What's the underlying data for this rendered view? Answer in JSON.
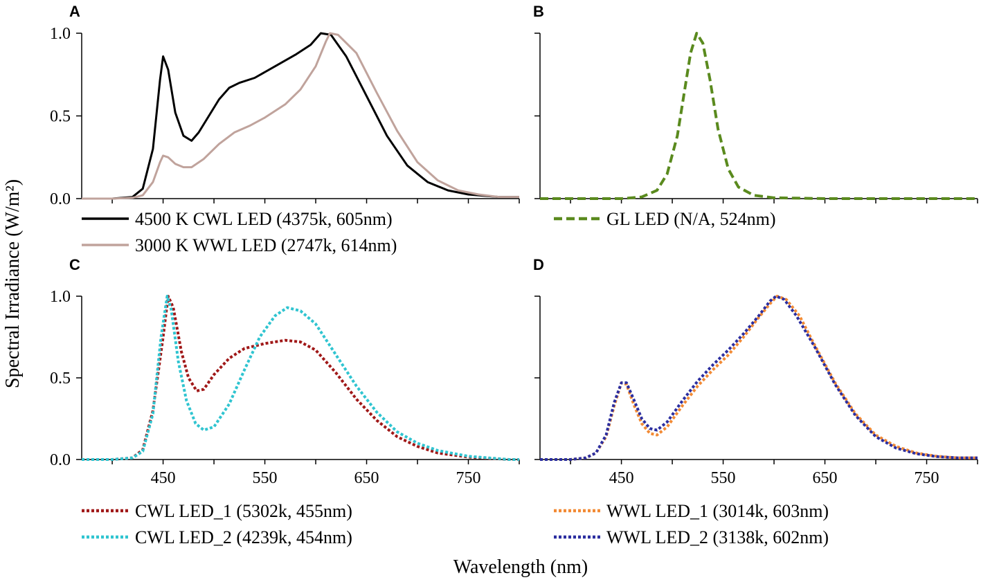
{
  "figure": {
    "ylabel": "Spectral Irradiance (W/m²)",
    "xlabel": "Wavelength (nm)"
  },
  "chart_data": [
    {
      "panel": "A",
      "type": "line",
      "xlim": [
        370,
        800
      ],
      "ylim": [
        0,
        1
      ],
      "yticks": [
        "0.0",
        "0.5",
        "1.0"
      ],
      "xticks": [],
      "series": [
        {
          "name": "4500 K CWL  LED (4375k, 605nm)",
          "color": "#000000",
          "dash": "solid",
          "points": [
            [
              370,
              0
            ],
            [
              400,
              0
            ],
            [
              420,
              0.01
            ],
            [
              430,
              0.06
            ],
            [
              440,
              0.3
            ],
            [
              447,
              0.72
            ],
            [
              450,
              0.86
            ],
            [
              455,
              0.78
            ],
            [
              462,
              0.52
            ],
            [
              470,
              0.38
            ],
            [
              478,
              0.35
            ],
            [
              485,
              0.4
            ],
            [
              495,
              0.5
            ],
            [
              505,
              0.6
            ],
            [
              515,
              0.67
            ],
            [
              525,
              0.7
            ],
            [
              540,
              0.73
            ],
            [
              560,
              0.8
            ],
            [
              580,
              0.87
            ],
            [
              595,
              0.93
            ],
            [
              605,
              1.0
            ],
            [
              615,
              0.99
            ],
            [
              630,
              0.86
            ],
            [
              650,
              0.62
            ],
            [
              670,
              0.38
            ],
            [
              690,
              0.2
            ],
            [
              710,
              0.1
            ],
            [
              730,
              0.05
            ],
            [
              750,
              0.025
            ],
            [
              780,
              0.01
            ],
            [
              800,
              0.01
            ]
          ]
        },
        {
          "name": "3000 K WWL LED (2747k, 614nm)",
          "color": "#c0a39c",
          "dash": "solid",
          "points": [
            [
              370,
              0
            ],
            [
              400,
              0
            ],
            [
              420,
              0.005
            ],
            [
              430,
              0.02
            ],
            [
              440,
              0.1
            ],
            [
              447,
              0.22
            ],
            [
              450,
              0.26
            ],
            [
              455,
              0.25
            ],
            [
              462,
              0.21
            ],
            [
              470,
              0.19
            ],
            [
              478,
              0.19
            ],
            [
              490,
              0.24
            ],
            [
              505,
              0.33
            ],
            [
              520,
              0.4
            ],
            [
              535,
              0.44
            ],
            [
              550,
              0.49
            ],
            [
              570,
              0.57
            ],
            [
              585,
              0.66
            ],
            [
              600,
              0.8
            ],
            [
              610,
              0.95
            ],
            [
              614,
              1.0
            ],
            [
              622,
              0.99
            ],
            [
              640,
              0.88
            ],
            [
              660,
              0.64
            ],
            [
              680,
              0.41
            ],
            [
              700,
              0.22
            ],
            [
              720,
              0.11
            ],
            [
              740,
              0.05
            ],
            [
              760,
              0.025
            ],
            [
              780,
              0.01
            ],
            [
              800,
              0.01
            ]
          ]
        }
      ]
    },
    {
      "panel": "B",
      "type": "line",
      "xlim": [
        370,
        800
      ],
      "ylim": [
        0,
        1
      ],
      "yticks": [
        "",
        "",
        ""
      ],
      "xticks": [],
      "series": [
        {
          "name": "GL LED (N/A, 524nm)",
          "color": "#5a8a1e",
          "dash": "dashed",
          "points": [
            [
              370,
              0
            ],
            [
              450,
              0
            ],
            [
              470,
              0.01
            ],
            [
              485,
              0.05
            ],
            [
              495,
              0.15
            ],
            [
              505,
              0.38
            ],
            [
              512,
              0.65
            ],
            [
              518,
              0.88
            ],
            [
              524,
              1.0
            ],
            [
              530,
              0.94
            ],
            [
              537,
              0.72
            ],
            [
              545,
              0.42
            ],
            [
              555,
              0.18
            ],
            [
              565,
              0.07
            ],
            [
              580,
              0.02
            ],
            [
              600,
              0.005
            ],
            [
              650,
              0
            ],
            [
              800,
              0
            ]
          ]
        }
      ]
    },
    {
      "panel": "C",
      "type": "line",
      "xlim": [
        370,
        800
      ],
      "ylim": [
        0,
        1
      ],
      "yticks": [
        "0.0",
        "0.5",
        "1.0"
      ],
      "xticks": [
        "450",
        "550",
        "650",
        "750"
      ],
      "series": [
        {
          "name": "CWL LED_1 (5302k, 455nm)",
          "color": "#a01818",
          "dash": "dotted",
          "points": [
            [
              370,
              0
            ],
            [
              400,
              0
            ],
            [
              420,
              0.01
            ],
            [
              430,
              0.06
            ],
            [
              440,
              0.3
            ],
            [
              450,
              0.75
            ],
            [
              455,
              1.0
            ],
            [
              460,
              0.93
            ],
            [
              468,
              0.66
            ],
            [
              475,
              0.5
            ],
            [
              483,
              0.42
            ],
            [
              490,
              0.43
            ],
            [
              500,
              0.52
            ],
            [
              515,
              0.62
            ],
            [
              530,
              0.68
            ],
            [
              550,
              0.71
            ],
            [
              570,
              0.73
            ],
            [
              585,
              0.72
            ],
            [
              600,
              0.67
            ],
            [
              620,
              0.53
            ],
            [
              640,
              0.37
            ],
            [
              660,
              0.24
            ],
            [
              680,
              0.14
            ],
            [
              700,
              0.08
            ],
            [
              720,
              0.04
            ],
            [
              750,
              0.015
            ],
            [
              790,
              0
            ],
            [
              800,
              0
            ]
          ]
        },
        {
          "name": "CWL LED_2 (4239k, 454nm)",
          "color": "#2fc4d0",
          "dash": "dotted",
          "points": [
            [
              370,
              0
            ],
            [
              400,
              0
            ],
            [
              420,
              0.01
            ],
            [
              430,
              0.05
            ],
            [
              440,
              0.28
            ],
            [
              448,
              0.75
            ],
            [
              454,
              1.0
            ],
            [
              458,
              0.92
            ],
            [
              465,
              0.6
            ],
            [
              473,
              0.36
            ],
            [
              482,
              0.22
            ],
            [
              490,
              0.18
            ],
            [
              500,
              0.2
            ],
            [
              515,
              0.34
            ],
            [
              530,
              0.55
            ],
            [
              545,
              0.75
            ],
            [
              560,
              0.88
            ],
            [
              572,
              0.93
            ],
            [
              585,
              0.91
            ],
            [
              600,
              0.83
            ],
            [
              620,
              0.64
            ],
            [
              640,
              0.45
            ],
            [
              660,
              0.29
            ],
            [
              680,
              0.17
            ],
            [
              700,
              0.1
            ],
            [
              720,
              0.055
            ],
            [
              750,
              0.02
            ],
            [
              790,
              0
            ],
            [
              800,
              0
            ]
          ]
        }
      ]
    },
    {
      "panel": "D",
      "type": "line",
      "xlim": [
        370,
        800
      ],
      "ylim": [
        0,
        1
      ],
      "yticks": [
        "",
        "",
        ""
      ],
      "xticks": [
        "450",
        "550",
        "650",
        "750"
      ],
      "series": [
        {
          "name": "WWL LED_1 (3014k, 603nm)",
          "color": "#f28a34",
          "dash": "dotted",
          "points": [
            [
              370,
              0
            ],
            [
              400,
              0
            ],
            [
              415,
              0.01
            ],
            [
              425,
              0.04
            ],
            [
              435,
              0.14
            ],
            [
              443,
              0.33
            ],
            [
              450,
              0.47
            ],
            [
              455,
              0.46
            ],
            [
              462,
              0.34
            ],
            [
              470,
              0.22
            ],
            [
              478,
              0.16
            ],
            [
              485,
              0.15
            ],
            [
              495,
              0.2
            ],
            [
              510,
              0.33
            ],
            [
              525,
              0.45
            ],
            [
              540,
              0.55
            ],
            [
              555,
              0.64
            ],
            [
              570,
              0.75
            ],
            [
              585,
              0.87
            ],
            [
              597,
              0.96
            ],
            [
              603,
              1.0
            ],
            [
              612,
              0.98
            ],
            [
              625,
              0.88
            ],
            [
              640,
              0.7
            ],
            [
              660,
              0.47
            ],
            [
              680,
              0.28
            ],
            [
              700,
              0.15
            ],
            [
              720,
              0.08
            ],
            [
              740,
              0.04
            ],
            [
              760,
              0.02
            ],
            [
              780,
              0.01
            ],
            [
              800,
              0.01
            ]
          ]
        },
        {
          "name": "WWL LED_2 (3138k, 602nm)",
          "color": "#2b2ea0",
          "dash": "dotted",
          "points": [
            [
              370,
              0
            ],
            [
              400,
              0
            ],
            [
              415,
              0.01
            ],
            [
              425,
              0.04
            ],
            [
              435,
              0.15
            ],
            [
              443,
              0.35
            ],
            [
              450,
              0.47
            ],
            [
              455,
              0.47
            ],
            [
              462,
              0.37
            ],
            [
              470,
              0.25
            ],
            [
              478,
              0.19
            ],
            [
              485,
              0.18
            ],
            [
              495,
              0.23
            ],
            [
              510,
              0.36
            ],
            [
              525,
              0.48
            ],
            [
              540,
              0.58
            ],
            [
              555,
              0.67
            ],
            [
              570,
              0.77
            ],
            [
              585,
              0.88
            ],
            [
              596,
              0.97
            ],
            [
              602,
              1.0
            ],
            [
              610,
              0.98
            ],
            [
              622,
              0.88
            ],
            [
              640,
              0.69
            ],
            [
              660,
              0.46
            ],
            [
              680,
              0.27
            ],
            [
              700,
              0.14
            ],
            [
              720,
              0.07
            ],
            [
              740,
              0.035
            ],
            [
              760,
              0.018
            ],
            [
              780,
              0.01
            ],
            [
              800,
              0.01
            ]
          ]
        }
      ]
    }
  ]
}
